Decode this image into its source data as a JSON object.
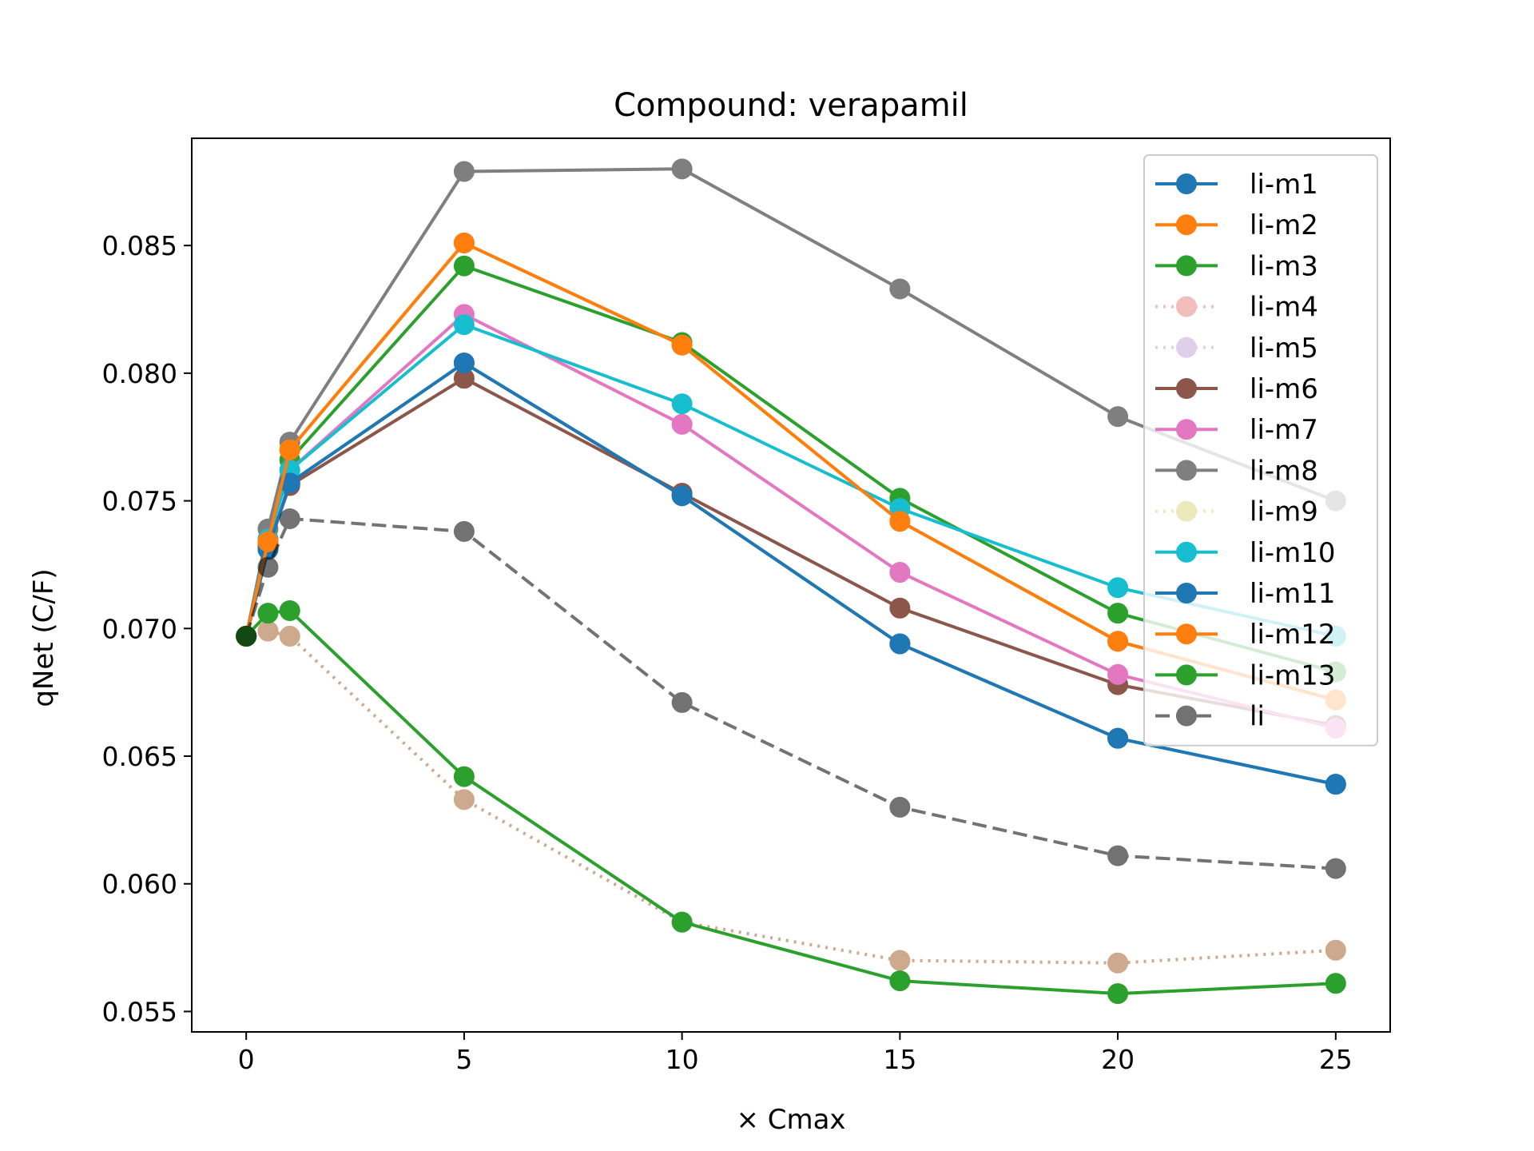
{
  "chart_data": {
    "type": "line",
    "title": "Compound: verapamil",
    "xlabel": "× Cmax",
    "ylabel": "qNet (C/F)",
    "x": [
      0,
      0.5,
      1,
      5,
      10,
      15,
      20,
      25
    ],
    "xlim": [
      -1.25,
      26.25
    ],
    "ylim": [
      0.0542,
      0.0892
    ],
    "xticks": [
      0,
      5,
      10,
      15,
      20,
      25
    ],
    "xtick_labels": [
      "0",
      "5",
      "10",
      "15",
      "20",
      "25"
    ],
    "yticks": [
      0.055,
      0.06,
      0.065,
      0.07,
      0.075,
      0.08,
      0.085
    ],
    "ytick_labels": [
      "0.055",
      "0.060",
      "0.065",
      "0.070",
      "0.075",
      "0.080",
      "0.085"
    ],
    "legend_position": "top-right",
    "grid": false,
    "series": [
      {
        "name": "li-m1",
        "color": "#1f77b4",
        "style": "solid",
        "values": [
          0.0697,
          0.0731,
          0.0757,
          0.0804,
          0.0752,
          0.0694,
          0.0657,
          0.0639
        ]
      },
      {
        "name": "li-m2",
        "color": "#ff7f0e",
        "style": "solid",
        "values": [
          0.0697,
          0.0734,
          0.077,
          0.0851,
          0.0811,
          0.0742,
          0.0695,
          0.0672
        ]
      },
      {
        "name": "li-m3",
        "color": "#2ca02c",
        "style": "solid",
        "values": [
          0.0697,
          0.0733,
          0.0766,
          0.0842,
          0.0812,
          0.0751,
          0.0706,
          0.0683
        ]
      },
      {
        "name": "li-m4",
        "color": "#d62728",
        "style": "dotted",
        "values": [
          0.0697,
          0.0699,
          0.0697,
          0.0633,
          0.0585,
          0.057,
          0.0569,
          0.0574
        ]
      },
      {
        "name": "li-m5",
        "color": "#9467bd",
        "style": "dotted",
        "values": [
          0.0697,
          0.0699,
          0.0697,
          0.0633,
          0.0585,
          0.057,
          0.0569,
          0.0574
        ]
      },
      {
        "name": "li-m6",
        "color": "#8c564b",
        "style": "solid",
        "values": [
          0.0697,
          0.0732,
          0.0756,
          0.0798,
          0.0753,
          0.0708,
          0.0678,
          0.0662
        ]
      },
      {
        "name": "li-m7",
        "color": "#e377c2",
        "style": "solid",
        "values": [
          0.0697,
          0.0735,
          0.0762,
          0.0823,
          0.078,
          0.0722,
          0.0682,
          0.0661
        ]
      },
      {
        "name": "li-m8",
        "color": "#7f7f7f",
        "style": "solid",
        "values": [
          0.0697,
          0.0739,
          0.0773,
          0.0879,
          0.088,
          0.0833,
          0.0783,
          0.075
        ]
      },
      {
        "name": "li-m9",
        "color": "#bcbd22",
        "style": "dotted",
        "values": [
          0.0697,
          0.0699,
          0.0697,
          0.0633,
          0.0585,
          0.057,
          0.0569,
          0.0574
        ]
      },
      {
        "name": "li-m10",
        "color": "#17becf",
        "style": "solid",
        "values": [
          0.0697,
          0.0735,
          0.0762,
          0.0819,
          0.0788,
          0.0747,
          0.0716,
          0.0697
        ]
      },
      {
        "name": "li-m11",
        "color": "#1f77b4",
        "style": "solid",
        "values": [
          0.0697,
          0.0731,
          0.0757,
          0.0804,
          0.0752,
          0.0694,
          0.0657,
          0.0639
        ]
      },
      {
        "name": "li-m12",
        "color": "#ff7f0e",
        "style": "solid",
        "values": [
          0.0697,
          0.0734,
          0.077,
          0.0851,
          0.0811,
          0.0742,
          0.0695,
          0.0672
        ]
      },
      {
        "name": "li-m13",
        "color": "#2ca02c",
        "style": "solid",
        "values": [
          0.0697,
          0.0706,
          0.0707,
          0.0642,
          0.0585,
          0.0562,
          0.0557,
          0.0561
        ]
      },
      {
        "name": "li",
        "color": "#000000",
        "style": "dashed",
        "values": [
          0.0697,
          0.0724,
          0.0743,
          0.0738,
          0.0671,
          0.063,
          0.0611,
          0.0606
        ]
      }
    ]
  }
}
